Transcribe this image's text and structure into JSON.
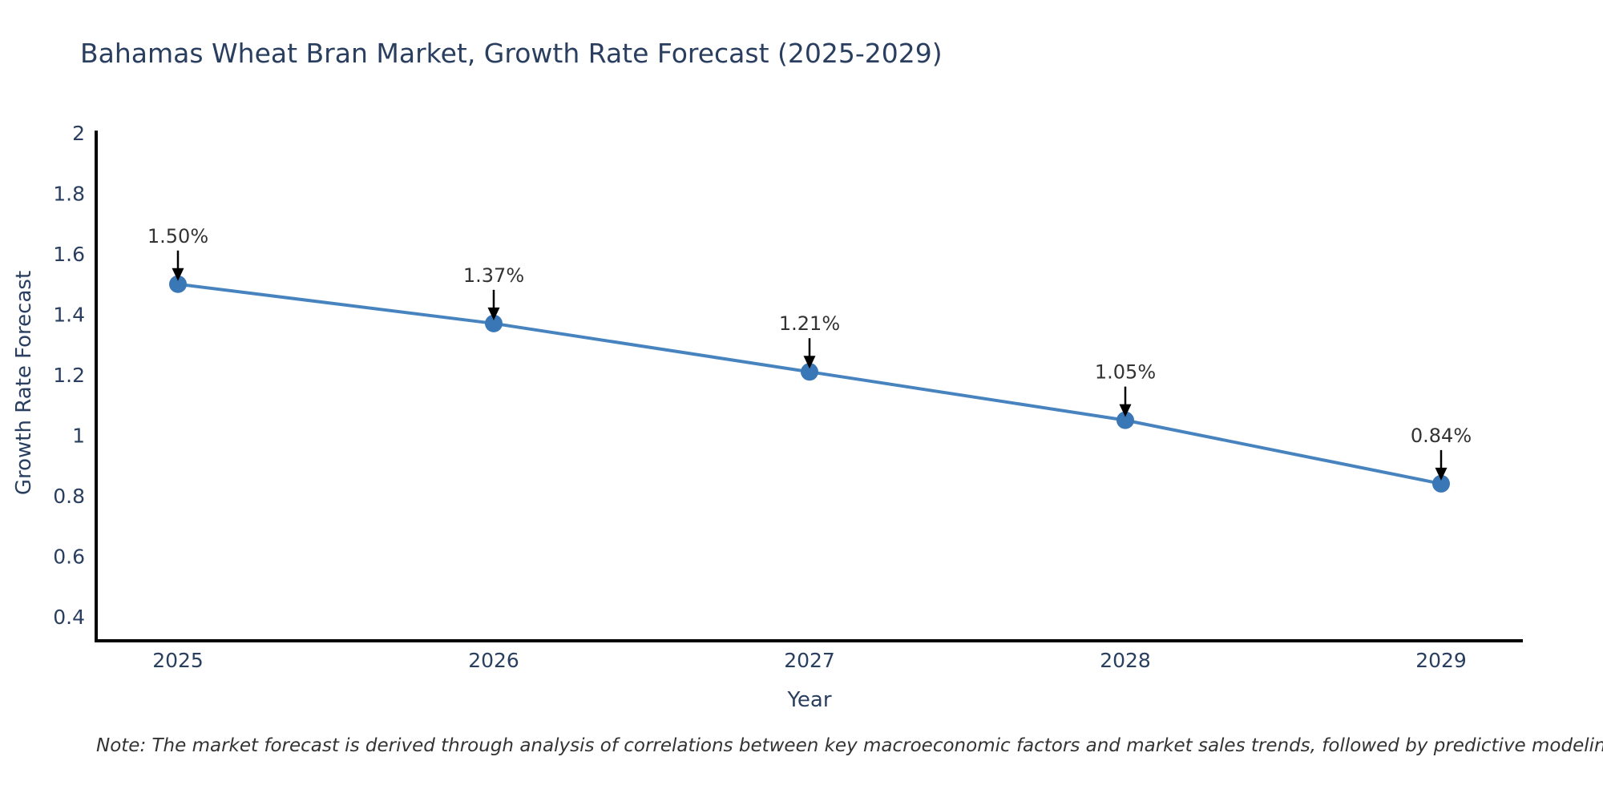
{
  "chart_data": {
    "type": "line",
    "title": "Bahamas Wheat Bran Market, Growth Rate Forecast (2025-2029)",
    "xlabel": "Year",
    "ylabel": "Growth Rate Forecast",
    "x": [
      2025,
      2026,
      2027,
      2028,
      2029
    ],
    "series": [
      {
        "name": "Growth Rate Forecast",
        "values": [
          1.5,
          1.37,
          1.21,
          1.05,
          0.84
        ]
      }
    ],
    "point_labels": [
      "1.50%",
      "1.37%",
      "1.21%",
      "1.05%",
      "0.84%"
    ],
    "xtick_labels": [
      "2025",
      "2026",
      "2027",
      "2028",
      "2029"
    ],
    "ytick_labels": [
      "0.4",
      "0.6",
      "0.8",
      "1",
      "1.2",
      "1.4",
      "1.6",
      "1.8",
      "2"
    ],
    "yticks": [
      0.4,
      0.6,
      0.8,
      1.0,
      1.2,
      1.4,
      1.6,
      1.8,
      2.0
    ],
    "ylim": [
      0.32,
      2.0
    ],
    "grid": false,
    "legend_position": "none",
    "note": "Note: The market forecast is derived through analysis of correlations between key macroeconomic factors and market sales trends, followed by predictive modeling to project future sales",
    "colors": {
      "line": "#4784bf",
      "marker": "#3a77b6",
      "axis_line": "#000000",
      "axis_text": "#2a3f5f",
      "annotation_text": "#333333",
      "arrow": "#000000",
      "note_text": "#333333",
      "background": "#ffffff"
    }
  }
}
